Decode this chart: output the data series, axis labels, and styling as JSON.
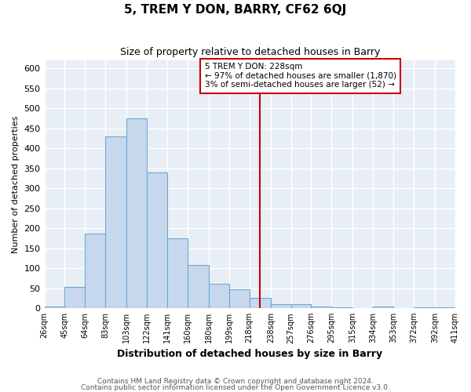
{
  "title": "5, TREM Y DON, BARRY, CF62 6QJ",
  "subtitle": "Size of property relative to detached houses in Barry",
  "xlabel": "Distribution of detached houses by size in Barry",
  "ylabel": "Number of detached properties",
  "bar_values": [
    5,
    53,
    187,
    430,
    475,
    340,
    175,
    108,
    62,
    47,
    25,
    10,
    10,
    5,
    2,
    0,
    5,
    0,
    2,
    2
  ],
  "bin_edges": [
    26,
    45,
    64,
    83,
    103,
    122,
    141,
    160,
    180,
    199,
    218,
    238,
    257,
    276,
    295,
    315,
    334,
    353,
    372,
    392,
    411
  ],
  "tick_labels": [
    "26sqm",
    "45sqm",
    "64sqm",
    "83sqm",
    "103sqm",
    "122sqm",
    "141sqm",
    "160sqm",
    "180sqm",
    "199sqm",
    "218sqm",
    "238sqm",
    "257sqm",
    "276sqm",
    "295sqm",
    "315sqm",
    "334sqm",
    "353sqm",
    "372sqm",
    "392sqm",
    "411sqm"
  ],
  "bar_color": "#c8d8ec",
  "bar_edge_color": "#6aaad4",
  "vline_x": 228,
  "vline_color": "#cc0000",
  "ylim": [
    0,
    620
  ],
  "yticks": [
    0,
    50,
    100,
    150,
    200,
    250,
    300,
    350,
    400,
    450,
    500,
    550,
    600
  ],
  "annotation_title": "5 TREM Y DON: 228sqm",
  "annotation_line1": "← 97% of detached houses are smaller (1,870)",
  "annotation_line2": "3% of semi-detached houses are larger (52) →",
  "annotation_box_color": "#ffffff",
  "annotation_box_edge": "#cc0000",
  "footnote1": "Contains HM Land Registry data © Crown copyright and database right 2024.",
  "footnote2": "Contains public sector information licensed under the Open Government Licence v3.0.",
  "plot_bg_color": "#e8eef6",
  "fig_bg_color": "#ffffff",
  "grid_color": "#ffffff"
}
